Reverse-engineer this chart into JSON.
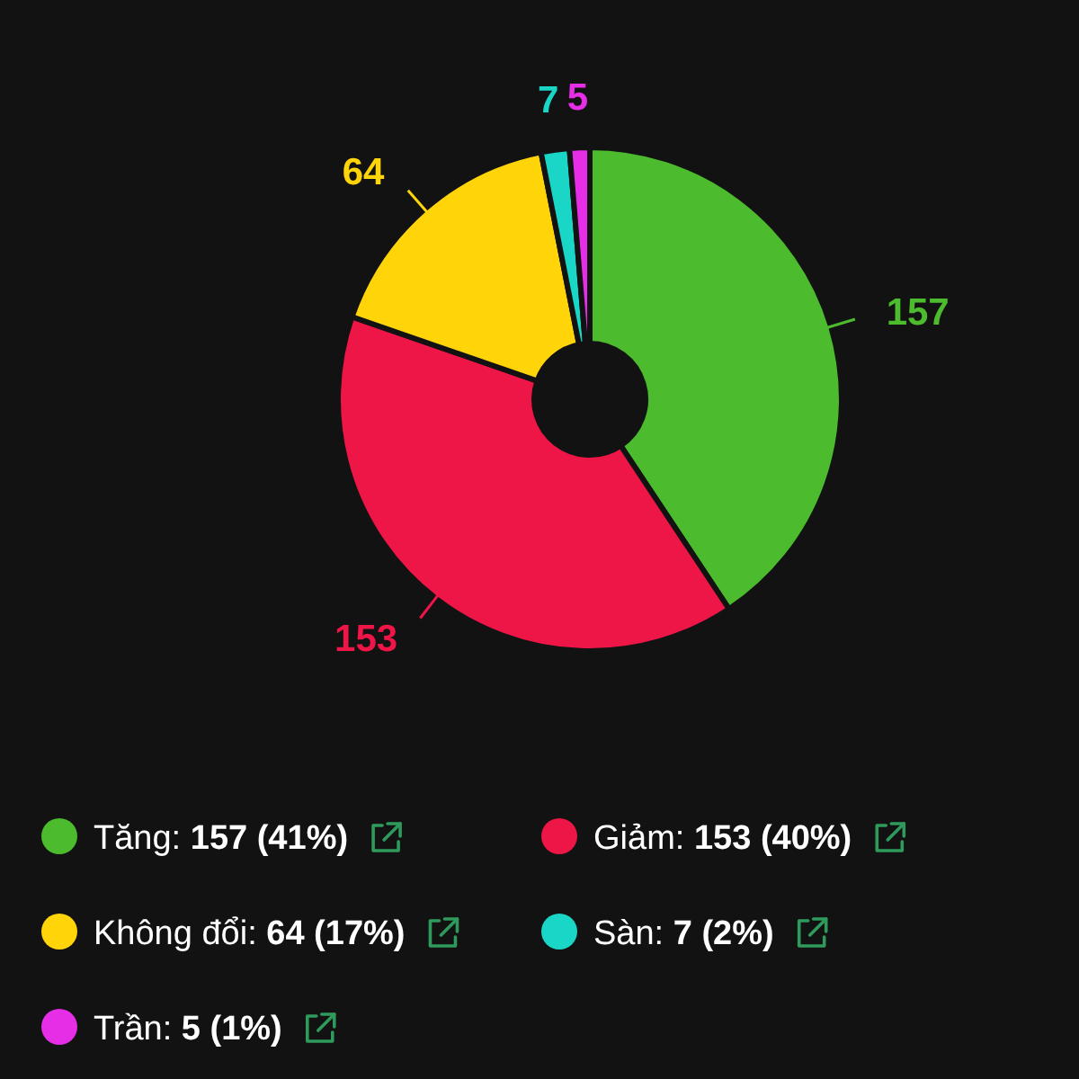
{
  "chart_data": {
    "type": "donut",
    "categories": [
      "Tăng: 157 (41%)",
      "Giảm: 153 (40%)",
      "Không đổi: 64 (17%)",
      "Sàn: 7 (2%)",
      "Trần: 5 (1%)"
    ],
    "values": [
      157,
      153,
      64,
      7,
      5
    ],
    "colors": [
      "#4cbb2e",
      "#ee1547",
      "#ffd50a",
      "#19d6c6",
      "#e62ee6"
    ],
    "data_labels": true,
    "legend": "bottom"
  }
}
